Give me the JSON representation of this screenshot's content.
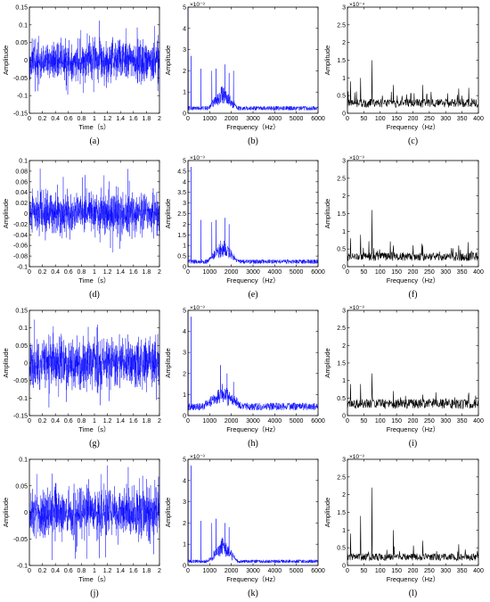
{
  "chart_data": [
    {
      "panel": "(a)",
      "type": "line",
      "xlabel": "Time（s）",
      "ylabel": "Amplitude",
      "xlim": [
        0,
        2
      ],
      "ylim": [
        -0.15,
        0.15
      ],
      "xticks": [
        "0",
        "0.2",
        "0.4",
        "0.6",
        "0.8",
        "1",
        "1.2",
        "1.4",
        "1.6",
        "1.8",
        "2"
      ],
      "yticks": [
        "0.15",
        "0.1",
        "0.05",
        "0",
        "-0.05",
        "-0.1",
        "-0.15"
      ],
      "exponent": "",
      "color": "#0000ff",
      "signal": {
        "kind": "time",
        "std": 0.028,
        "peak": 0.12
      }
    },
    {
      "panel": "(b)",
      "type": "line",
      "xlabel": "Frequency（Hz）",
      "ylabel": "Amplitude",
      "xlim": [
        0,
        6000
      ],
      "ylim": [
        0,
        5
      ],
      "xticks": [
        "0",
        "1000",
        "2000",
        "3000",
        "4000",
        "5000",
        "6000"
      ],
      "yticks": [
        "5",
        "4",
        "3",
        "2",
        "1",
        "0"
      ],
      "exponent": "×10⁻³",
      "color": "#0000ff",
      "signal": {
        "kind": "spectrum",
        "base": 0.25,
        "band": [
          900,
          2300
        ],
        "bandLevel": 0.9,
        "peaks": [
          [
            150,
            2.7
          ],
          [
            600,
            2.1
          ],
          [
            1100,
            2.0
          ],
          [
            1300,
            2.1
          ],
          [
            1700,
            2.3
          ],
          [
            1900,
            1.9
          ],
          [
            2100,
            2.0
          ]
        ]
      }
    },
    {
      "panel": "(c)",
      "type": "line",
      "xlabel": "Frequency（Hz）",
      "ylabel": "Amplitude",
      "xlim": [
        0,
        400
      ],
      "ylim": [
        0,
        3
      ],
      "xticks": [
        "0",
        "50",
        "100",
        "150",
        "200",
        "250",
        "300",
        "350",
        "400"
      ],
      "yticks": [
        "3",
        "2.5",
        "2",
        "1.5",
        "1",
        "0.5",
        "0"
      ],
      "exponent": "×10⁻⁴",
      "color": "#000000",
      "signal": {
        "kind": "lowspec",
        "base": 0.3,
        "peaks": [
          [
            10,
            0.9
          ],
          [
            40,
            1.0
          ],
          [
            75,
            1.5
          ],
          [
            140,
            0.8
          ],
          [
            230,
            0.8
          ],
          [
            340,
            0.7
          ]
        ]
      }
    },
    {
      "panel": "(d)",
      "type": "line",
      "xlabel": "Time（s）",
      "ylabel": "Amplitude",
      "xlim": [
        0,
        2
      ],
      "ylim": [
        -0.1,
        0.1
      ],
      "xticks": [
        "0",
        "0.2",
        "0.4",
        "0.6",
        "0.8",
        "1",
        "1.2",
        "1.4",
        "1.6",
        "1.8",
        "2"
      ],
      "yticks": [
        "0.1",
        "0.08",
        "0.06",
        "0.04",
        "0.02",
        "0",
        "-0.02",
        "-0.04",
        "-0.06",
        "-0.08",
        "-0.1"
      ],
      "exponent": "",
      "color": "#0000ff",
      "signal": {
        "kind": "time",
        "std": 0.02,
        "peak": 0.09
      }
    },
    {
      "panel": "(e)",
      "type": "line",
      "xlabel": "Frequency（Hz）",
      "ylabel": "Amplitude",
      "xlim": [
        0,
        6000
      ],
      "ylim": [
        0,
        5
      ],
      "xticks": [
        "0",
        "1000",
        "2000",
        "3000",
        "4000",
        "5000",
        "6000"
      ],
      "yticks": [
        "5",
        "4.5",
        "4",
        "3.5",
        "3",
        "2.5",
        "2",
        "1.5",
        "1",
        "0.5",
        "0"
      ],
      "exponent": "×10⁻³",
      "color": "#0000ff",
      "signal": {
        "kind": "spectrum",
        "base": 0.25,
        "band": [
          900,
          2300
        ],
        "bandLevel": 0.9,
        "peaks": [
          [
            150,
            4.7
          ],
          [
            600,
            2.2
          ],
          [
            1100,
            2.1
          ],
          [
            1300,
            2.2
          ],
          [
            1700,
            2.3
          ],
          [
            1900,
            2.0
          ]
        ]
      }
    },
    {
      "panel": "(f)",
      "type": "line",
      "xlabel": "Frequency（Hz）",
      "ylabel": "Amplitude",
      "xlim": [
        0,
        400
      ],
      "ylim": [
        0,
        3
      ],
      "xticks": [
        "0",
        "50",
        "100",
        "150",
        "200",
        "250",
        "300",
        "350",
        "400"
      ],
      "yticks": [
        "3",
        "2.5",
        "2",
        "1.5",
        "1",
        "0.5",
        "0"
      ],
      "exponent": "×10⁻³",
      "color": "#000000",
      "signal": {
        "kind": "lowspec",
        "base": 0.3,
        "peaks": [
          [
            10,
            0.8
          ],
          [
            40,
            0.9
          ],
          [
            75,
            1.6
          ],
          [
            140,
            0.6
          ],
          [
            230,
            0.6
          ],
          [
            340,
            0.6
          ]
        ]
      }
    },
    {
      "panel": "(g)",
      "type": "line",
      "xlabel": "Time（s）",
      "ylabel": "Amplitude",
      "xlim": [
        0,
        2
      ],
      "ylim": [
        -0.15,
        0.15
      ],
      "xticks": [
        "0",
        "0.2",
        "0.4",
        "0.6",
        "0.8",
        "1",
        "1.2",
        "1.4",
        "1.6",
        "1.8",
        "2"
      ],
      "yticks": [
        "0.15",
        "0.1",
        "0.05",
        "0",
        "-0.05",
        "-0.1",
        "-0.15"
      ],
      "exponent": "",
      "color": "#0000ff",
      "signal": {
        "kind": "time",
        "std": 0.035,
        "peak": 0.13
      }
    },
    {
      "panel": "(h)",
      "type": "line",
      "xlabel": "Frequency（Hz）",
      "ylabel": "Amplitude",
      "xlim": [
        0,
        6000
      ],
      "ylim": [
        0,
        5
      ],
      "xticks": [
        "0",
        "1000",
        "2000",
        "3000",
        "4000",
        "5000",
        "6000"
      ],
      "yticks": [
        "5",
        "4",
        "3",
        "2",
        "1",
        "0"
      ],
      "exponent": "×10⁻³",
      "color": "#0000ff",
      "signal": {
        "kind": "spectrum",
        "base": 0.45,
        "band": [
          700,
          2500
        ],
        "bandLevel": 0.8,
        "peaks": [
          [
            150,
            4.7
          ],
          [
            1500,
            2.4
          ],
          [
            1800,
            2.0
          ],
          [
            2100,
            1.6
          ]
        ]
      }
    },
    {
      "panel": "(i)",
      "type": "line",
      "xlabel": "Frequency（Hz）",
      "ylabel": "Amplitude",
      "xlim": [
        0,
        400
      ],
      "ylim": [
        0,
        3
      ],
      "xticks": [
        "0",
        "50",
        "100",
        "150",
        "200",
        "250",
        "300",
        "350",
        "400"
      ],
      "yticks": [
        "3",
        "2.5",
        "2",
        "1.5",
        "1",
        "0.5",
        "0"
      ],
      "exponent": "×10⁻³",
      "color": "#000000",
      "signal": {
        "kind": "lowspec",
        "base": 0.35,
        "peaks": [
          [
            10,
            0.9
          ],
          [
            40,
            0.9
          ],
          [
            75,
            1.2
          ],
          [
            140,
            0.7
          ],
          [
            230,
            0.6
          ]
        ]
      }
    },
    {
      "panel": "(j)",
      "type": "line",
      "xlabel": "Time（s）",
      "ylabel": "Amplitude",
      "xlim": [
        0,
        2
      ],
      "ylim": [
        -0.1,
        0.1
      ],
      "xticks": [
        "0",
        "0.2",
        "0.4",
        "0.6",
        "0.8",
        "1",
        "1.2",
        "1.4",
        "1.6",
        "1.8",
        "2"
      ],
      "yticks": [
        "0.1",
        "0.05",
        "0",
        "-0.05",
        "-0.1"
      ],
      "exponent": "",
      "color": "#0000ff",
      "signal": {
        "kind": "time",
        "std": 0.022,
        "peak": 0.09
      }
    },
    {
      "panel": "(k)",
      "type": "line",
      "xlabel": "Frequency（Hz）",
      "ylabel": "Amplitude",
      "xlim": [
        0,
        6000
      ],
      "ylim": [
        0,
        5
      ],
      "xticks": [
        "0",
        "1000",
        "2000",
        "3000",
        "4000",
        "5000",
        "6000"
      ],
      "yticks": [
        "5",
        "4",
        "3",
        "2",
        "1",
        "0"
      ],
      "exponent": "×10⁻³",
      "color": "#0000ff",
      "signal": {
        "kind": "spectrum",
        "base": 0.2,
        "band": [
          900,
          2300
        ],
        "bandLevel": 0.9,
        "peaks": [
          [
            150,
            4.7
          ],
          [
            600,
            2.1
          ],
          [
            1100,
            2.0
          ],
          [
            1300,
            2.2
          ],
          [
            1700,
            2.0
          ],
          [
            1900,
            1.8
          ]
        ]
      }
    },
    {
      "panel": "(l)",
      "type": "line",
      "xlabel": "Frequency（Hz）",
      "ylabel": "Amplitude",
      "xlim": [
        0,
        400
      ],
      "ylim": [
        0,
        3
      ],
      "xticks": [
        "0",
        "50",
        "100",
        "150",
        "200",
        "250",
        "300",
        "350",
        "400"
      ],
      "yticks": [
        "3",
        "2.5",
        "2",
        "1.5",
        "1",
        "0.5",
        "0"
      ],
      "exponent": "×10⁻³",
      "color": "#000000",
      "signal": {
        "kind": "lowspec",
        "base": 0.25,
        "peaks": [
          [
            10,
            0.9
          ],
          [
            40,
            1.4
          ],
          [
            75,
            2.2
          ],
          [
            140,
            1.0
          ],
          [
            230,
            0.7
          ],
          [
            340,
            0.6
          ]
        ]
      }
    }
  ]
}
